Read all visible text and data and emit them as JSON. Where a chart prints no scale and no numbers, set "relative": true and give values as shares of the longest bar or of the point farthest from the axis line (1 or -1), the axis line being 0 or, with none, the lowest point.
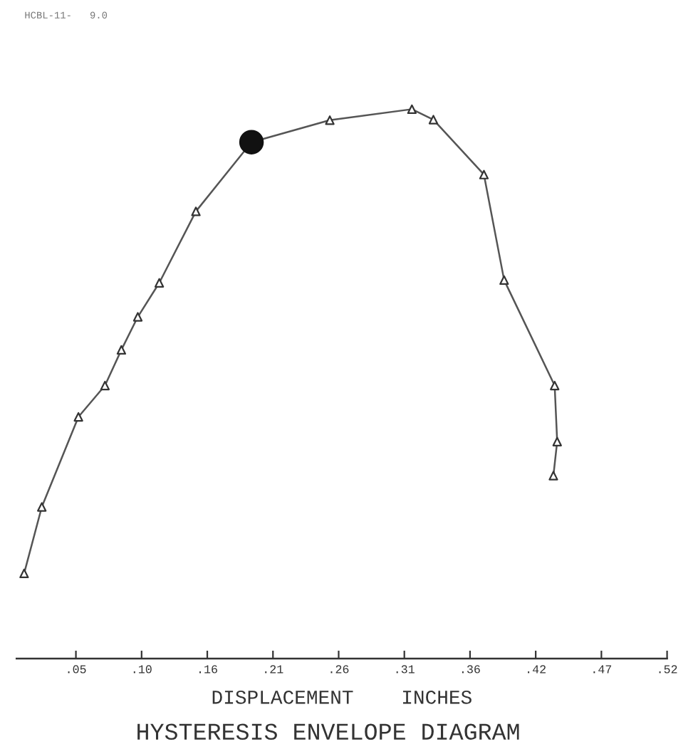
{
  "chart_data": {
    "type": "line",
    "title": "HYSTERESIS ENVELOPE DIAGRAM",
    "xlabel": "DISPLACEMENT    INCHES",
    "annotations": [
      "HCBL-11-   9.0"
    ],
    "relative": true,
    "xlim": [
      0.005,
      0.52
    ],
    "xticks": [
      {
        "value": 0.052,
        "label": ".05"
      },
      {
        "value": 0.104,
        "label": ".10"
      },
      {
        "value": 0.156,
        "label": ".16"
      },
      {
        "value": 0.208,
        "label": ".21"
      },
      {
        "value": 0.26,
        "label": ".26"
      },
      {
        "value": 0.312,
        "label": ".31"
      },
      {
        "value": 0.364,
        "label": ".36"
      },
      {
        "value": 0.416,
        "label": ".42"
      },
      {
        "value": 0.468,
        "label": ".47"
      },
      {
        "value": 0.52,
        "label": ".52"
      }
    ],
    "tick_labels": "x",
    "grid": false,
    "series": [
      {
        "color": "#555555",
        "marker": "none",
        "line_style": "solid",
        "x": [
          0.011,
          0.025,
          0.054,
          0.075,
          0.088,
          0.101,
          0.118,
          0.147,
          0.191,
          0.253,
          0.318,
          0.335,
          0.375,
          0.391,
          0.431,
          0.433,
          0.43
        ],
        "values": [
          0.155,
          0.276,
          0.44,
          0.497,
          0.562,
          0.622,
          0.684,
          0.814,
          0.94,
          0.98,
          1.0,
          0.981,
          0.881,
          0.689,
          0.497,
          0.395,
          0.333
        ]
      },
      {
        "type": "scatter",
        "color": "#333333",
        "marker": "triangle",
        "x": [
          0.011,
          0.025,
          0.054,
          0.075,
          0.088,
          0.101,
          0.118,
          0.147,
          0.253,
          0.318,
          0.335,
          0.375,
          0.391,
          0.431,
          0.433,
          0.43
        ],
        "values": [
          0.155,
          0.276,
          0.44,
          0.497,
          0.562,
          0.622,
          0.684,
          0.814,
          0.98,
          1.0,
          0.981,
          0.881,
          0.689,
          0.497,
          0.395,
          0.333
        ]
      },
      {
        "type": "scatter",
        "color": "#111111",
        "marker": "circle",
        "x": [
          0.191
        ],
        "values": [
          0.94
        ]
      }
    ]
  }
}
